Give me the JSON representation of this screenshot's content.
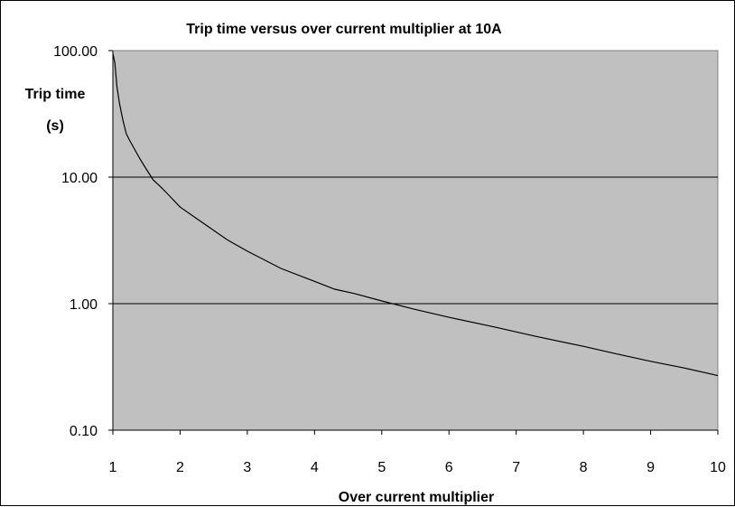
{
  "chart_data": {
    "type": "line",
    "title": "Trip time versus over current multiplier at 10A",
    "xlabel": "Over current multiplier",
    "ylabel_line1": "Trip time",
    "ylabel_line2": "(s)",
    "xlim": [
      1,
      10
    ],
    "ylim": [
      0.1,
      100
    ],
    "yscale": "log",
    "grid": "horizontal major gridlines",
    "plot_background": "#c0c0c0",
    "line_color": "#000000",
    "x_ticks": [
      "1",
      "2",
      "3",
      "4",
      "5",
      "6",
      "7",
      "8",
      "9",
      "10"
    ],
    "y_ticks": [
      "100.00",
      "10.00",
      "1.00",
      "0.10"
    ],
    "y_tick_values": [
      100,
      10,
      1,
      0.1
    ],
    "series": [
      {
        "x": [
          1.0,
          1.03,
          1.06,
          1.1,
          1.15,
          1.2,
          1.25,
          1.3,
          1.4,
          1.5,
          1.6,
          1.7,
          1.8,
          2.0,
          2.3,
          2.7,
          3.0,
          3.5,
          4.0,
          4.3,
          4.6,
          5.0,
          5.5,
          6.0,
          6.7,
          7.3,
          8.0,
          8.5,
          9.0,
          9.5,
          10.0
        ],
        "y": [
          95,
          80,
          52,
          38,
          28,
          22,
          19.5,
          17.5,
          14,
          11.5,
          9.5,
          8.5,
          7.5,
          5.8,
          4.5,
          3.2,
          2.6,
          1.9,
          1.5,
          1.3,
          1.2,
          1.05,
          0.9,
          0.78,
          0.65,
          0.55,
          0.46,
          0.4,
          0.35,
          0.31,
          0.27
        ]
      }
    ]
  }
}
